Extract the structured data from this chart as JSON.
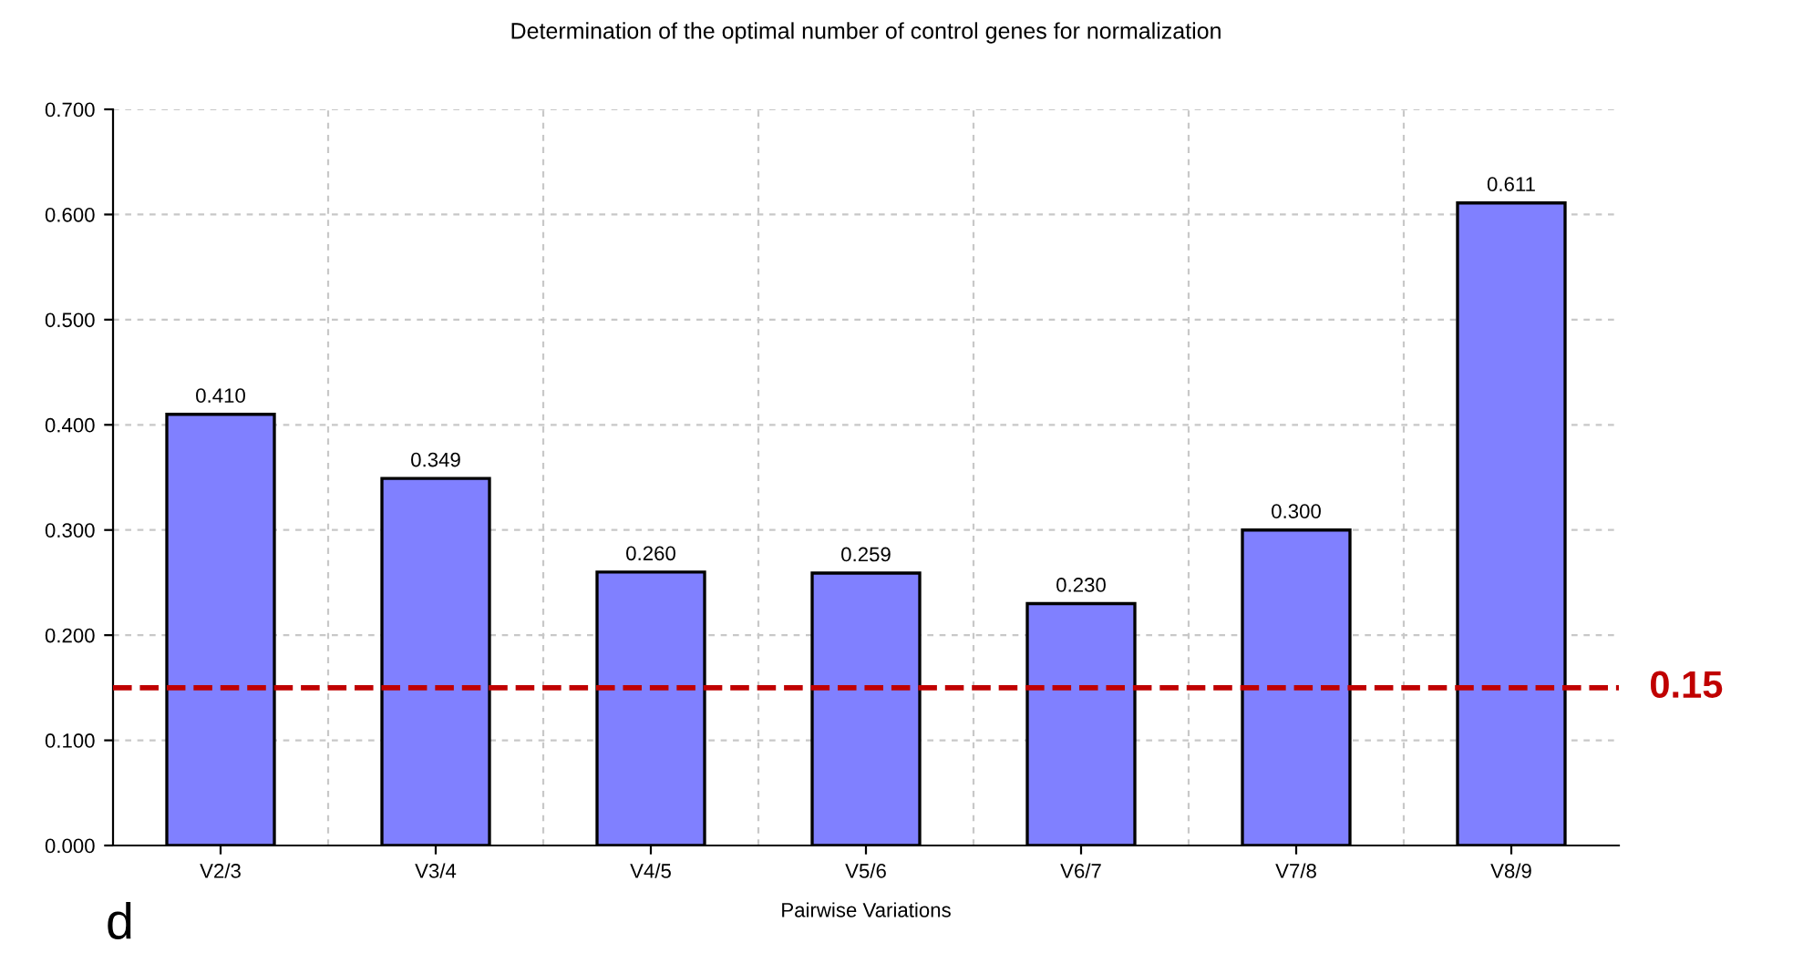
{
  "chart_data": {
    "type": "bar",
    "title": "Determination of the optimal number of control genes for normalization",
    "xlabel": "Pairwise Variations",
    "categories": [
      "V2/3",
      "V3/4",
      "V4/5",
      "V5/6",
      "V6/7",
      "V7/8",
      "V8/9"
    ],
    "values": [
      0.41,
      0.349,
      0.26,
      0.259,
      0.23,
      0.3,
      0.611
    ],
    "value_labels": [
      "0.410",
      "0.349",
      "0.260",
      "0.259",
      "0.230",
      "0.300",
      "0.611"
    ],
    "color": "#8080ff",
    "ylim": [
      0,
      0.7
    ],
    "yticks": [
      {
        "value": 0,
        "label": "0.000"
      },
      {
        "value": 0.1,
        "label": "0.100"
      },
      {
        "value": 0.2,
        "label": "0.200"
      },
      {
        "value": 0.3,
        "label": "0.300"
      },
      {
        "value": 0.4,
        "label": "0.400"
      },
      {
        "value": 0.5,
        "label": "0.500"
      },
      {
        "value": 0.6,
        "label": "0.600"
      },
      {
        "value": 0.7,
        "label": "0.700"
      }
    ],
    "grid": true,
    "ref_lines": [
      {
        "axis": "y",
        "value": 0.15,
        "label": "0.15",
        "color": "#c00000",
        "line_style": "dashed"
      }
    ],
    "annotations": [
      "d"
    ]
  }
}
